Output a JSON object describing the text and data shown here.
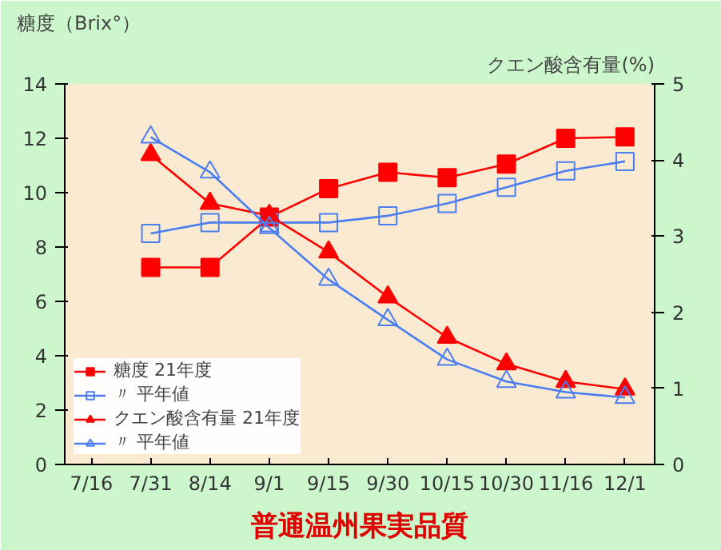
{
  "chart_data": {
    "type": "line",
    "title": "普通温州果実品質",
    "ylabel": "糖度（Brix°）",
    "y2label": "クエン酸含有量(%)",
    "categories": [
      "7/16",
      "7/31",
      "8/14",
      "9/1",
      "9/15",
      "9/30",
      "10/15",
      "10/30",
      "11/16",
      "12/1"
    ],
    "ylim": [
      0,
      14
    ],
    "yticks": [
      0,
      2,
      4,
      6,
      8,
      10,
      12,
      14
    ],
    "y2lim": [
      0,
      5
    ],
    "y2ticks": [
      0,
      1,
      2,
      3,
      4,
      5
    ],
    "grid": false,
    "legend": "bottom left",
    "line_style": "solid",
    "series": [
      {
        "name": "糖度 21年度",
        "color": "#ff0000",
        "marker": "square",
        "values": [
          null,
          7.25,
          7.25,
          9.1,
          10.15,
          10.75,
          10.55,
          11.05,
          12.0,
          12.05
        ]
      },
      {
        "name": "〃 平年値",
        "color": "#4a7ef0",
        "marker": "square",
        "values": [
          null,
          8.5,
          8.9,
          8.9,
          8.9,
          9.15,
          9.6,
          10.2,
          10.8,
          11.15
        ]
      },
      {
        "name": "クエン酸含有量 21年度",
        "color": "#ff0000",
        "marker": "triangle",
        "axis": "y2",
        "values": [
          null,
          4.07,
          3.43,
          3.27,
          2.79,
          2.2,
          1.67,
          1.32,
          1.09,
          0.99
        ]
      },
      {
        "name": "〃 平年値",
        "color": "#4a7ef0",
        "marker": "triangle",
        "axis": "y2",
        "values": [
          null,
          4.3,
          3.84,
          3.11,
          2.43,
          1.9,
          1.38,
          1.09,
          0.95,
          0.88
        ]
      }
    ]
  }
}
